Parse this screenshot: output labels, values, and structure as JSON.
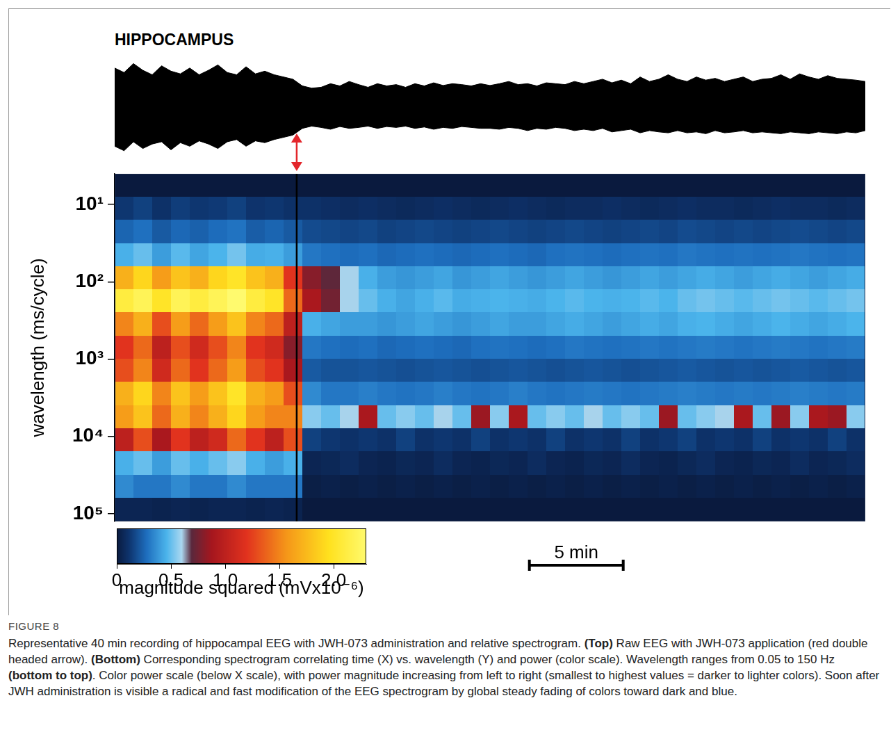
{
  "figure": {
    "label": "FIGURE 8",
    "caption": [
      {
        "text": "Representative 40 min recording of hippocampal EEG with JWH-073 administration and relative spectrogram. ",
        "bold": false
      },
      {
        "text": "(Top)",
        "bold": true
      },
      {
        "text": " Raw EEG with JWH-073 application (red double headed arrow). ",
        "bold": false
      },
      {
        "text": "(Bottom)",
        "bold": true
      },
      {
        "text": " Corresponding spectrogram correlating time (X) vs. wavelength (Y) and power (color scale). Wavelength ranges from 0.05 to 150 Hz ",
        "bold": false
      },
      {
        "text": "(bottom to top)",
        "bold": true
      },
      {
        "text": ". Color power scale (below X scale), with power magnitude increasing from left to right (smallest to highest values = darker to lighter colors). Soon after JWH administration is visible a radical and fast modification of the EEG spectrogram by global steady fading of colors toward dark and blue.",
        "bold": false
      }
    ]
  },
  "chart_data": [
    {
      "type": "band",
      "title": "HIPPOCAMPUS",
      "color": "#000000",
      "xlim": [
        0,
        40
      ],
      "ylim": [
        -1.05,
        1.05
      ],
      "tick_labels": false,
      "x": [
        0,
        0.5,
        1,
        1.5,
        2,
        2.5,
        3,
        3.5,
        4,
        4.5,
        5,
        5.5,
        6,
        6.5,
        7,
        7.5,
        8,
        8.5,
        9,
        9.5,
        10,
        10.5,
        11,
        11.5,
        12,
        12.5,
        13,
        13.5,
        14,
        14.5,
        15,
        15.5,
        16,
        16.5,
        17,
        17.5,
        18,
        18.5,
        19,
        19.5,
        20,
        20.5,
        21,
        21.5,
        22,
        22.5,
        23,
        23.5,
        24,
        24.5,
        25,
        25.5,
        26,
        26.5,
        27,
        27.5,
        28,
        28.5,
        29,
        29.5,
        30,
        30.5,
        31,
        31.5,
        32,
        32.5,
        33,
        33.5,
        34,
        34.5,
        35,
        35.5,
        36,
        36.5,
        37,
        37.5,
        38,
        38.5,
        39,
        39.5,
        40
      ],
      "upper": [
        0.85,
        0.75,
        0.95,
        0.8,
        0.7,
        0.9,
        0.78,
        0.72,
        0.85,
        0.7,
        0.8,
        0.92,
        0.75,
        0.7,
        0.88,
        0.72,
        0.78,
        0.7,
        0.65,
        0.6,
        0.45,
        0.4,
        0.42,
        0.5,
        0.45,
        0.55,
        0.48,
        0.42,
        0.5,
        0.45,
        0.48,
        0.42,
        0.5,
        0.45,
        0.52,
        0.46,
        0.5,
        0.48,
        0.45,
        0.5,
        0.46,
        0.5,
        0.55,
        0.48,
        0.5,
        0.45,
        0.52,
        0.5,
        0.48,
        0.55,
        0.5,
        0.55,
        0.6,
        0.52,
        0.58,
        0.5,
        0.65,
        0.55,
        0.6,
        0.7,
        0.6,
        0.55,
        0.65,
        0.58,
        0.62,
        0.55,
        0.6,
        0.65,
        0.55,
        0.6,
        0.62,
        0.7,
        0.6,
        0.72,
        0.65,
        0.6,
        0.68,
        0.62,
        0.6,
        0.58,
        0.55
      ],
      "lower": [
        -0.9,
        -1.0,
        -0.8,
        -0.95,
        -0.85,
        -0.8,
        -0.98,
        -0.82,
        -0.9,
        -0.78,
        -0.85,
        -0.95,
        -0.8,
        -0.75,
        -0.9,
        -0.78,
        -0.82,
        -0.75,
        -0.7,
        -0.65,
        -0.5,
        -0.45,
        -0.48,
        -0.52,
        -0.46,
        -0.5,
        -0.48,
        -0.45,
        -0.5,
        -0.46,
        -0.48,
        -0.45,
        -0.5,
        -0.47,
        -0.52,
        -0.48,
        -0.5,
        -0.46,
        -0.48,
        -0.5,
        -0.5,
        -0.52,
        -0.48,
        -0.5,
        -0.55,
        -0.5,
        -0.52,
        -0.48,
        -0.5,
        -0.55,
        -0.52,
        -0.55,
        -0.5,
        -0.58,
        -0.55,
        -0.52,
        -0.6,
        -0.55,
        -0.58,
        -0.6,
        -0.55,
        -0.6,
        -0.58,
        -0.62,
        -0.55,
        -0.6,
        -0.58,
        -0.55,
        -0.6,
        -0.58,
        -0.6,
        -0.62,
        -0.58,
        -0.6,
        -0.62,
        -0.58,
        -0.6,
        -0.62,
        -0.58,
        -0.6,
        -0.55
      ]
    },
    {
      "type": "heatmap",
      "ylabel": "wavelength (ms/cycle)",
      "log": "y",
      "grid": false,
      "tick_labels": "y",
      "xlim": [
        0,
        40
      ],
      "ylim": [
        126000,
        4
      ],
      "yticks": [
        {
          "value": 10,
          "label": "10¹"
        },
        {
          "value": 100,
          "label": "10²"
        },
        {
          "value": 1000,
          "label": "10³"
        },
        {
          "value": 10000,
          "label": "10⁴"
        },
        {
          "value": 100000,
          "label": "10⁵"
        }
      ],
      "event_x": 9.7,
      "scale_bar": {
        "x": 22.1,
        "length": 5,
        "label": "5 min"
      },
      "colorbar": {
        "range": [
          0,
          2.3
        ],
        "label": "magnitude squared (mVx10⁻⁶)",
        "ticks": [
          0,
          0.5,
          {
            "value": 1,
            "label": "1.0"
          },
          1.5,
          {
            "value": 2,
            "label": "2.0"
          }
        ]
      },
      "x_edges": [
        0,
        1,
        2,
        3,
        4,
        5,
        6,
        7,
        8,
        9,
        10,
        11,
        12,
        13,
        14,
        15,
        16,
        17,
        18,
        19,
        20,
        21,
        22,
        23,
        24,
        25,
        26,
        27,
        28,
        29,
        30,
        31,
        32,
        33,
        34,
        35,
        36,
        37,
        38,
        39,
        40
      ],
      "y_edges": [
        4,
        8,
        16,
        32,
        63,
        126,
        251,
        501,
        1000,
        1995,
        3981,
        7943,
        15849,
        31623,
        63096,
        126000
      ],
      "cells": [
        [
          0,
          0,
          0,
          0,
          0,
          0,
          0,
          0,
          0,
          0,
          0,
          0,
          0,
          0,
          0,
          0,
          0,
          0,
          0,
          0,
          0,
          0,
          0,
          0,
          0,
          0,
          0,
          0,
          0,
          0,
          0,
          0,
          0,
          0,
          0,
          0,
          0,
          0,
          0,
          0
        ],
        [
          0.12,
          0.15,
          0.1,
          0.14,
          0.12,
          0.13,
          0.15,
          0.11,
          0.12,
          0.1,
          0.1,
          0.09,
          0.08,
          0.09,
          0.08,
          0.07,
          0.08,
          0.09,
          0.08,
          0.07,
          0.08,
          0.09,
          0.08,
          0.07,
          0.08,
          0.08,
          0.09,
          0.08,
          0.07,
          0.08,
          0.09,
          0.08,
          0.08,
          0.07,
          0.08,
          0.09,
          0.08,
          0.08,
          0.07,
          0.08
        ],
        [
          0.25,
          0.28,
          0.22,
          0.26,
          0.24,
          0.27,
          0.29,
          0.23,
          0.25,
          0.22,
          0.18,
          0.17,
          0.16,
          0.17,
          0.15,
          0.16,
          0.17,
          0.16,
          0.15,
          0.16,
          0.17,
          0.16,
          0.15,
          0.16,
          0.17,
          0.16,
          0.15,
          0.16,
          0.17,
          0.16,
          0.18,
          0.17,
          0.16,
          0.17,
          0.16,
          0.17,
          0.18,
          0.17,
          0.16,
          0.17
        ],
        [
          0.45,
          0.5,
          0.4,
          0.48,
          0.42,
          0.46,
          0.52,
          0.44,
          0.45,
          0.4,
          0.3,
          0.28,
          0.27,
          0.28,
          0.26,
          0.27,
          0.28,
          0.27,
          0.26,
          0.27,
          0.28,
          0.27,
          0.26,
          0.28,
          0.29,
          0.28,
          0.27,
          0.28,
          0.29,
          0.28,
          0.3,
          0.29,
          0.28,
          0.29,
          0.28,
          0.29,
          0.3,
          0.29,
          0.28,
          0.29
        ],
        [
          1.7,
          1.9,
          1.6,
          1.8,
          1.7,
          1.9,
          2.0,
          1.8,
          1.7,
          1.2,
          0.8,
          0.7,
          0.6,
          0.45,
          0.4,
          0.38,
          0.4,
          0.42,
          0.38,
          0.4,
          0.42,
          0.4,
          0.38,
          0.4,
          0.42,
          0.4,
          0.38,
          0.4,
          0.42,
          0.4,
          0.42,
          0.44,
          0.42,
          0.4,
          0.42,
          0.44,
          0.42,
          0.4,
          0.42,
          0.44
        ],
        [
          2.1,
          2.2,
          2.0,
          2.2,
          2.1,
          2.2,
          2.3,
          2.1,
          2.0,
          1.4,
          0.9,
          0.75,
          0.6,
          0.5,
          0.45,
          0.42,
          0.45,
          0.48,
          0.44,
          0.45,
          0.46,
          0.45,
          0.44,
          0.46,
          0.48,
          0.46,
          0.45,
          0.46,
          0.48,
          0.46,
          0.5,
          0.52,
          0.5,
          0.48,
          0.5,
          0.52,
          0.5,
          0.48,
          0.5,
          0.52
        ],
        [
          1.5,
          1.7,
          1.3,
          1.6,
          1.4,
          1.6,
          1.8,
          1.5,
          1.4,
          1.0,
          0.45,
          0.42,
          0.4,
          0.4,
          0.38,
          0.4,
          0.42,
          0.4,
          0.38,
          0.4,
          0.42,
          0.4,
          0.4,
          0.42,
          0.44,
          0.42,
          0.4,
          0.42,
          0.44,
          0.42,
          0.45,
          0.46,
          0.44,
          0.42,
          0.44,
          0.46,
          0.44,
          0.42,
          0.44,
          0.46
        ],
        [
          1.2,
          1.4,
          1.0,
          1.3,
          1.1,
          1.3,
          1.5,
          1.2,
          1.1,
          0.8,
          0.3,
          0.28,
          0.27,
          0.28,
          0.26,
          0.27,
          0.28,
          0.27,
          0.26,
          0.28,
          0.29,
          0.28,
          0.27,
          0.28,
          0.3,
          0.29,
          0.28,
          0.29,
          0.3,
          0.29,
          0.3,
          0.31,
          0.3,
          0.29,
          0.3,
          0.31,
          0.3,
          0.29,
          0.3,
          0.31
        ],
        [
          1.3,
          1.5,
          1.1,
          1.4,
          1.2,
          1.4,
          1.6,
          1.3,
          1.2,
          0.9,
          0.22,
          0.2,
          0.2,
          0.21,
          0.2,
          0.19,
          0.2,
          0.21,
          0.2,
          0.19,
          0.2,
          0.21,
          0.2,
          0.19,
          0.2,
          0.21,
          0.2,
          0.19,
          0.2,
          0.21,
          0.22,
          0.21,
          0.2,
          0.21,
          0.2,
          0.21,
          0.22,
          0.21,
          0.2,
          0.21
        ],
        [
          1.7,
          1.9,
          1.5,
          1.8,
          1.6,
          1.8,
          2.0,
          1.7,
          1.6,
          1.3,
          0.35,
          0.3,
          0.3,
          0.32,
          0.3,
          0.29,
          0.3,
          0.32,
          0.3,
          0.29,
          0.3,
          0.32,
          0.3,
          0.29,
          0.3,
          0.31,
          0.3,
          0.29,
          0.3,
          0.31,
          0.32,
          0.31,
          0.3,
          0.31,
          0.3,
          0.31,
          0.32,
          0.31,
          0.3,
          0.31
        ],
        [
          1.6,
          1.8,
          1.4,
          1.7,
          1.5,
          1.7,
          1.9,
          1.6,
          1.5,
          1.5,
          0.55,
          0.5,
          0.6,
          0.9,
          0.5,
          0.55,
          0.5,
          0.6,
          0.5,
          0.85,
          0.55,
          0.9,
          0.5,
          0.55,
          0.5,
          0.6,
          0.5,
          0.55,
          0.5,
          0.85,
          0.5,
          0.55,
          0.6,
          0.9,
          0.5,
          0.85,
          0.55,
          0.9,
          0.85,
          0.55
        ],
        [
          1.0,
          1.3,
          0.9,
          1.2,
          1.0,
          1.1,
          1.4,
          1.2,
          1.0,
          1.3,
          0.15,
          0.12,
          0.1,
          0.12,
          0.1,
          0.15,
          0.1,
          0.12,
          0.1,
          0.15,
          0.1,
          0.12,
          0.1,
          0.15,
          0.1,
          0.12,
          0.1,
          0.15,
          0.1,
          0.12,
          0.15,
          0.1,
          0.12,
          0.1,
          0.15,
          0.1,
          0.12,
          0.1,
          0.15,
          0.1
        ],
        [
          0.45,
          0.5,
          0.4,
          0.5,
          0.45,
          0.5,
          0.55,
          0.45,
          0.4,
          0.45,
          0.05,
          0.06,
          0.08,
          0.05,
          0.04,
          0.06,
          0.05,
          0.08,
          0.05,
          0.04,
          0.06,
          0.05,
          0.08,
          0.05,
          0.04,
          0.06,
          0.05,
          0.08,
          0.05,
          0.04,
          0.06,
          0.08,
          0.05,
          0.04,
          0.06,
          0.05,
          0.08,
          0.05,
          0.06,
          0.08
        ],
        [
          0.35,
          0.3,
          0.3,
          0.35,
          0.3,
          0.3,
          0.35,
          0.3,
          0.3,
          0.3,
          0.02,
          0.03,
          0.02,
          0.03,
          0.02,
          0.03,
          0.02,
          0.03,
          0.02,
          0.03,
          0.02,
          0.03,
          0.02,
          0.03,
          0.02,
          0.03,
          0.02,
          0.03,
          0.02,
          0.03,
          0.02,
          0.03,
          0.02,
          0.03,
          0.02,
          0.03,
          0.02,
          0.03,
          0.02,
          0.03
        ],
        [
          0.05,
          0.05,
          0.04,
          0.05,
          0.04,
          0.05,
          0.05,
          0.04,
          0.05,
          0.04,
          0,
          0,
          0,
          0,
          0,
          0,
          0,
          0,
          0,
          0,
          0,
          0,
          0,
          0,
          0,
          0,
          0,
          0,
          0,
          0,
          0,
          0,
          0,
          0,
          0,
          0,
          0,
          0,
          0,
          0
        ]
      ]
    }
  ]
}
